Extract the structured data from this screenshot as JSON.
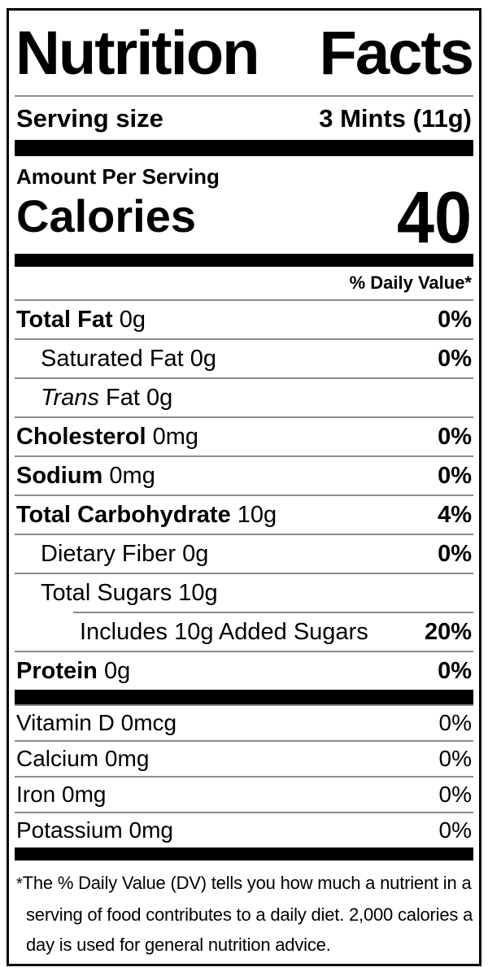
{
  "colors": {
    "text": "#000000",
    "bg": "#ffffff",
    "divider": "#8c8c8c",
    "bar": "#000000"
  },
  "title": {
    "word1": "Nutrition",
    "word2": "Facts"
  },
  "serving": {
    "label": "Serving size",
    "value": "3 Mints (11g)"
  },
  "calories": {
    "amount_per_label": "Amount Per Serving",
    "label": "Calories",
    "value": "40"
  },
  "daily_value": {
    "header": "% Daily Value*"
  },
  "nutrients": [
    {
      "name": "Total Fat",
      "amount": "0g",
      "pct": "0%"
    },
    {
      "name": "Saturated Fat",
      "amount": "0g",
      "pct": "0%"
    },
    {
      "name": "Trans",
      "amount": "Fat 0g",
      "pct": ""
    },
    {
      "name": "Cholesterol",
      "amount": "0mg",
      "pct": "0%"
    },
    {
      "name": "Sodium",
      "amount": "0mg",
      "pct": "0%"
    },
    {
      "name": "Total Carbohydrate",
      "amount": "10g",
      "pct": "4%"
    },
    {
      "name": "Dietary Fiber",
      "amount": "0g",
      "pct": "0%"
    },
    {
      "name": "Total Sugars",
      "amount": "10g",
      "pct": ""
    },
    {
      "name": "Includes 10g Added Sugars",
      "amount": "",
      "pct": "20%"
    },
    {
      "name": "Protein",
      "amount": "0g",
      "pct": "0%"
    }
  ],
  "vitamins": [
    {
      "name": "Vitamin D",
      "amount": "0mcg",
      "pct": "0%"
    },
    {
      "name": "Calcium",
      "amount": "0mg",
      "pct": "0%"
    },
    {
      "name": "Iron",
      "amount": "0mg",
      "pct": "0%"
    },
    {
      "name": "Potassium",
      "amount": "0mg",
      "pct": "0%"
    }
  ],
  "footnote": {
    "asterisk": "*",
    "lines": [
      "The % Daily Value (DV) tells you how much a nutrient in a",
      "serving of food contributes to a daily diet. 2,000 calories a",
      "day is used for general nutrition advice."
    ]
  }
}
